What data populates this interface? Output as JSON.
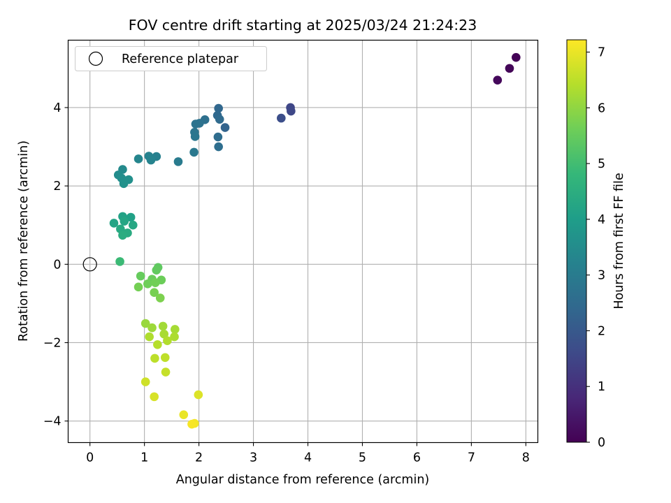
{
  "chart_data": {
    "type": "scatter",
    "title": "FOV centre drift starting at 2025/03/24 21:24:23",
    "xlabel": "Angular distance from reference (arcmin)",
    "ylabel": "Rotation from reference (arcmin)",
    "xlim": [
      -0.4,
      8.22
    ],
    "ylim": [
      -4.55,
      5.72
    ],
    "xticks": [
      0,
      1,
      2,
      3,
      4,
      5,
      6,
      7,
      8
    ],
    "yticks": [
      -4,
      -2,
      0,
      2,
      4
    ],
    "grid": true,
    "legend": {
      "position": "top-left",
      "entries": [
        "Reference platepar"
      ]
    },
    "reference_point": {
      "x": 0,
      "y": 0
    },
    "colorbar": {
      "label": "Hours from first FF file",
      "range": [
        0,
        7.22
      ],
      "ticks": [
        0,
        1,
        2,
        3,
        4,
        5,
        6,
        7
      ],
      "colormap": "viridis"
    },
    "points": [
      {
        "x": 7.82,
        "y": 5.28,
        "t": 0.05
      },
      {
        "x": 7.7,
        "y": 5.0,
        "t": 0.1
      },
      {
        "x": 7.48,
        "y": 4.7,
        "t": 0.15
      },
      {
        "x": 3.68,
        "y": 4.0,
        "t": 1.5
      },
      {
        "x": 3.69,
        "y": 3.91,
        "t": 1.55
      },
      {
        "x": 3.51,
        "y": 3.73,
        "t": 1.7
      },
      {
        "x": 2.48,
        "y": 3.49,
        "t": 2.3
      },
      {
        "x": 2.36,
        "y": 3.98,
        "t": 2.4
      },
      {
        "x": 2.34,
        "y": 3.8,
        "t": 2.45
      },
      {
        "x": 2.38,
        "y": 3.7,
        "t": 2.5
      },
      {
        "x": 2.35,
        "y": 3.25,
        "t": 2.55
      },
      {
        "x": 2.36,
        "y": 3.0,
        "t": 2.6
      },
      {
        "x": 2.11,
        "y": 3.69,
        "t": 2.65
      },
      {
        "x": 2.01,
        "y": 3.6,
        "t": 2.7
      },
      {
        "x": 1.94,
        "y": 3.58,
        "t": 2.75
      },
      {
        "x": 1.92,
        "y": 3.37,
        "t": 2.8
      },
      {
        "x": 1.93,
        "y": 3.26,
        "t": 2.85
      },
      {
        "x": 1.91,
        "y": 2.86,
        "t": 2.9
      },
      {
        "x": 1.62,
        "y": 2.62,
        "t": 3.0
      },
      {
        "x": 1.22,
        "y": 2.75,
        "t": 3.15
      },
      {
        "x": 1.08,
        "y": 2.76,
        "t": 3.2
      },
      {
        "x": 1.12,
        "y": 2.66,
        "t": 3.25
      },
      {
        "x": 0.89,
        "y": 2.69,
        "t": 3.3
      },
      {
        "x": 0.6,
        "y": 2.42,
        "t": 3.45
      },
      {
        "x": 0.52,
        "y": 2.28,
        "t": 3.5
      },
      {
        "x": 0.58,
        "y": 2.2,
        "t": 3.55
      },
      {
        "x": 0.71,
        "y": 2.16,
        "t": 3.6
      },
      {
        "x": 0.62,
        "y": 2.06,
        "t": 3.65
      },
      {
        "x": 0.75,
        "y": 1.2,
        "t": 4.1
      },
      {
        "x": 0.6,
        "y": 1.22,
        "t": 4.15
      },
      {
        "x": 0.44,
        "y": 1.05,
        "t": 4.2
      },
      {
        "x": 0.63,
        "y": 1.1,
        "t": 4.25
      },
      {
        "x": 0.79,
        "y": 1.0,
        "t": 4.3
      },
      {
        "x": 0.56,
        "y": 0.9,
        "t": 4.35
      },
      {
        "x": 0.69,
        "y": 0.8,
        "t": 4.4
      },
      {
        "x": 0.6,
        "y": 0.74,
        "t": 4.45
      },
      {
        "x": 0.55,
        "y": 0.07,
        "t": 4.9
      },
      {
        "x": 1.25,
        "y": -0.08,
        "t": 5.4
      },
      {
        "x": 1.22,
        "y": -0.15,
        "t": 5.45
      },
      {
        "x": 0.93,
        "y": -0.3,
        "t": 5.5
      },
      {
        "x": 1.14,
        "y": -0.38,
        "t": 5.55
      },
      {
        "x": 1.31,
        "y": -0.4,
        "t": 5.58
      },
      {
        "x": 1.06,
        "y": -0.5,
        "t": 5.62
      },
      {
        "x": 1.2,
        "y": -0.47,
        "t": 5.65
      },
      {
        "x": 0.89,
        "y": -0.58,
        "t": 5.68
      },
      {
        "x": 1.18,
        "y": -0.72,
        "t": 5.72
      },
      {
        "x": 1.29,
        "y": -0.86,
        "t": 5.78
      },
      {
        "x": 1.02,
        "y": -1.51,
        "t": 6.1
      },
      {
        "x": 1.14,
        "y": -1.62,
        "t": 6.15
      },
      {
        "x": 1.34,
        "y": -1.58,
        "t": 6.2
      },
      {
        "x": 1.56,
        "y": -1.66,
        "t": 6.25
      },
      {
        "x": 1.36,
        "y": -1.78,
        "t": 6.28
      },
      {
        "x": 1.55,
        "y": -1.85,
        "t": 6.32
      },
      {
        "x": 1.09,
        "y": -1.85,
        "t": 6.35
      },
      {
        "x": 1.42,
        "y": -1.95,
        "t": 6.38
      },
      {
        "x": 1.24,
        "y": -2.05,
        "t": 6.42
      },
      {
        "x": 1.19,
        "y": -2.4,
        "t": 6.5
      },
      {
        "x": 1.38,
        "y": -2.38,
        "t": 6.52
      },
      {
        "x": 1.39,
        "y": -2.75,
        "t": 6.6
      },
      {
        "x": 1.02,
        "y": -3.0,
        "t": 6.7
      },
      {
        "x": 1.18,
        "y": -3.38,
        "t": 6.8
      },
      {
        "x": 1.99,
        "y": -3.33,
        "t": 6.85
      },
      {
        "x": 1.72,
        "y": -3.84,
        "t": 7.0
      },
      {
        "x": 1.92,
        "y": -4.06,
        "t": 7.1
      },
      {
        "x": 1.87,
        "y": -4.08,
        "t": 7.15
      }
    ]
  }
}
